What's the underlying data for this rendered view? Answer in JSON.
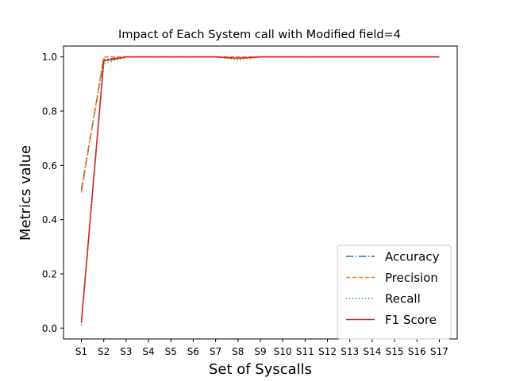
{
  "chart_data": {
    "type": "line",
    "title": "Impact of Each System call with Modified field=4",
    "xlabel": "Set of Syscalls",
    "ylabel": "Metrics value",
    "categories": [
      "S1",
      "S2",
      "S3",
      "S4",
      "S5",
      "S6",
      "S7",
      "S8",
      "S9",
      "S10",
      "S11",
      "S12",
      "S13",
      "S14",
      "S15",
      "S16",
      "S17"
    ],
    "ylim": [
      -0.04,
      1.04
    ],
    "yticks": [
      0.0,
      0.2,
      0.4,
      0.6,
      0.8,
      1.0
    ],
    "ytick_labels": [
      "0.0",
      "0.2",
      "0.4",
      "0.6",
      "0.8",
      "1.0"
    ],
    "grid": false,
    "legend_position": "lower-right",
    "series": [
      {
        "name": "Accuracy",
        "color": "#1f77b4",
        "dash": "dashdot",
        "values": [
          0.51,
          0.99,
          1.0,
          1.0,
          1.0,
          1.0,
          1.0,
          0.995,
          1.0,
          1.0,
          1.0,
          1.0,
          1.0,
          1.0,
          1.0,
          1.0,
          1.0
        ]
      },
      {
        "name": "Precision",
        "color": "#ff7f0e",
        "dash": "dashed",
        "values": [
          0.5,
          1.0,
          1.0,
          1.0,
          1.0,
          1.0,
          1.0,
          1.0,
          1.0,
          1.0,
          1.0,
          1.0,
          1.0,
          1.0,
          1.0,
          1.0,
          1.0
        ]
      },
      {
        "name": "Recall",
        "color": "#2ca02c",
        "dash": "dotted",
        "values": [
          0.01,
          0.975,
          1.0,
          1.0,
          1.0,
          1.0,
          1.0,
          0.99,
          1.0,
          1.0,
          1.0,
          1.0,
          1.0,
          1.0,
          1.0,
          1.0,
          1.0
        ]
      },
      {
        "name": "F1 Score",
        "color": "#d62728",
        "dash": "solid",
        "values": [
          0.02,
          0.985,
          1.0,
          1.0,
          1.0,
          1.0,
          1.0,
          0.995,
          1.0,
          1.0,
          1.0,
          1.0,
          1.0,
          1.0,
          1.0,
          1.0,
          1.0
        ]
      }
    ]
  }
}
